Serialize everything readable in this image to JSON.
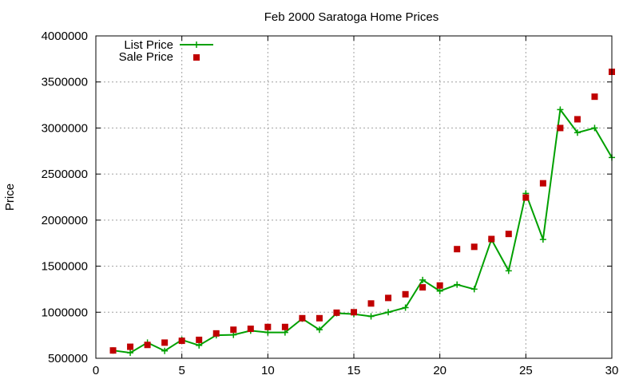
{
  "chart_data": {
    "type": "line",
    "title": "Feb 2000 Saratoga Home Prices",
    "xlabel": "",
    "ylabel": "Price",
    "xlim": [
      0,
      30
    ],
    "ylim": [
      500000,
      4000000
    ],
    "xticks": [
      0,
      5,
      10,
      15,
      20,
      25,
      30
    ],
    "yticks": [
      500000,
      1000000,
      1500000,
      2000000,
      2500000,
      3000000,
      3500000,
      4000000
    ],
    "grid": true,
    "legend_position": "top-left",
    "series": [
      {
        "name": "List Price",
        "style": "linespoints",
        "color": "#00a000",
        "marker": "plus",
        "x": [
          1,
          2,
          3,
          4,
          5,
          6,
          7,
          8,
          9,
          10,
          11,
          12,
          13,
          14,
          15,
          16,
          17,
          18,
          19,
          20,
          21,
          22,
          23,
          24,
          25,
          26,
          27,
          28,
          29,
          30
        ],
        "y": [
          585000,
          560000,
          670000,
          580000,
          700000,
          640000,
          750000,
          755000,
          800000,
          780000,
          780000,
          930000,
          810000,
          990000,
          980000,
          955000,
          1000000,
          1050000,
          1350000,
          1230000,
          1300000,
          1250000,
          1790000,
          1450000,
          2290000,
          1790000,
          3200000,
          2950000,
          3000000,
          2680000
        ]
      },
      {
        "name": "Sale Price",
        "style": "points",
        "color": "#c00000",
        "marker": "square",
        "x": [
          1,
          2,
          3,
          4,
          5,
          6,
          7,
          8,
          9,
          10,
          11,
          12,
          13,
          14,
          15,
          16,
          17,
          18,
          19,
          20,
          21,
          22,
          23,
          24,
          25,
          26,
          27,
          28,
          29,
          30
        ],
        "y": [
          585000,
          625000,
          645000,
          670000,
          690000,
          700000,
          770000,
          810000,
          820000,
          840000,
          840000,
          935000,
          935000,
          995000,
          1000000,
          1095000,
          1155000,
          1195000,
          1270000,
          1290000,
          1685000,
          1710000,
          1795000,
          1850000,
          2245000,
          2400000,
          3000000,
          3095000,
          3340000,
          3610000
        ]
      }
    ]
  }
}
